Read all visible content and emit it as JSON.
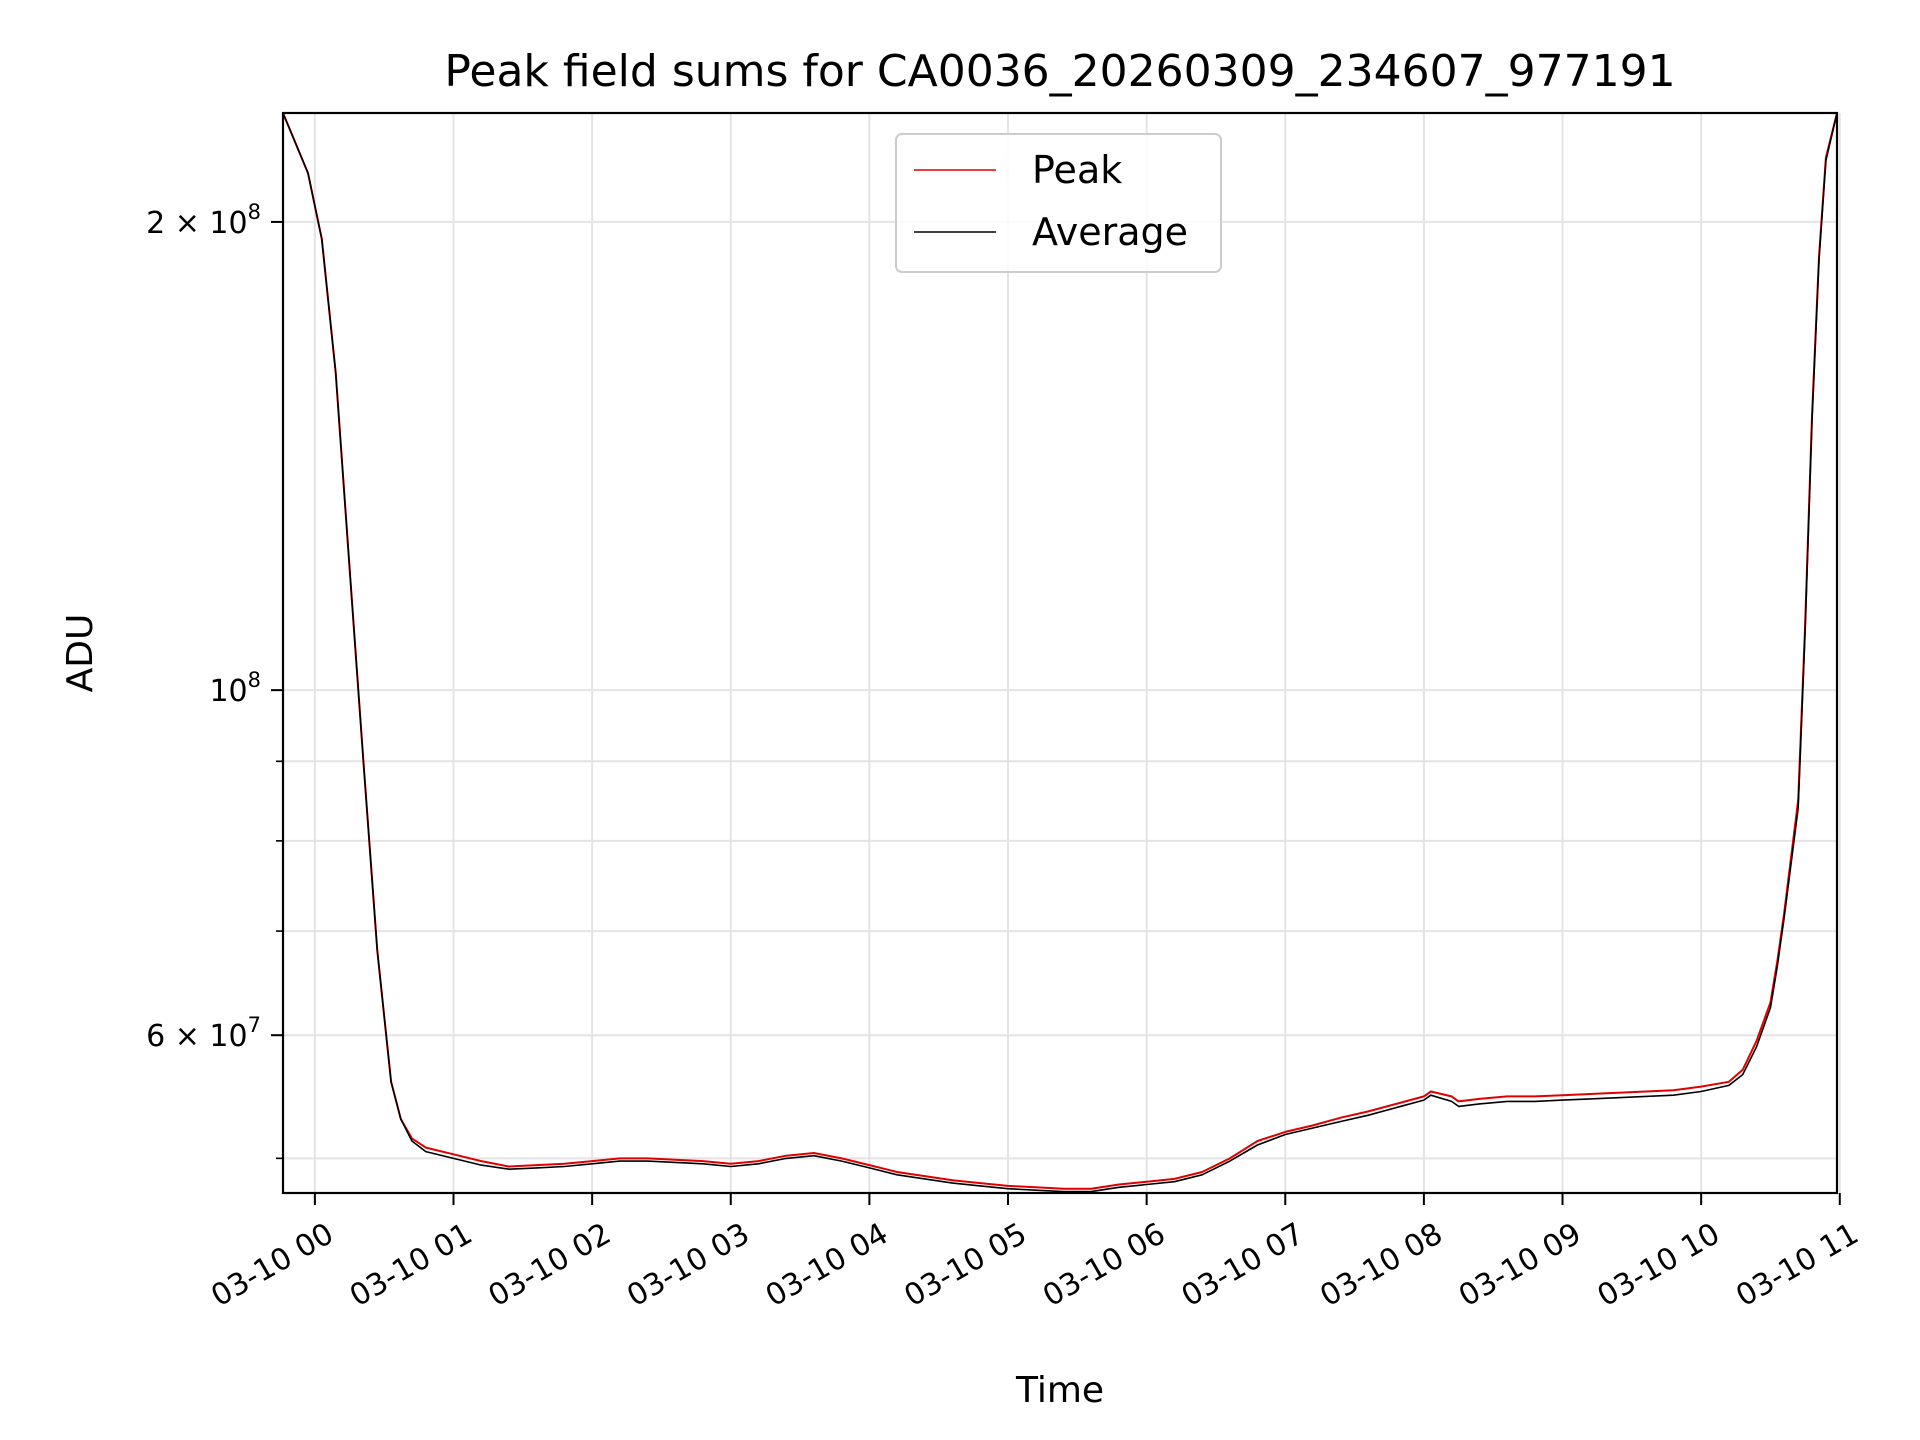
{
  "chart_data": {
    "type": "line",
    "title": "Peak field sums for CA0036_20260309_234607_977191",
    "xlabel": "Time",
    "ylabel": "ADU",
    "yscale": "log",
    "xlim_hours": [
      -0.23,
      10.98
    ],
    "ylim": [
      47500000,
      235000000
    ],
    "grid": true,
    "legend_placement": "upper center",
    "x_ticks": [
      "03-10 00",
      "03-10 01",
      "03-10 02",
      "03-10 03",
      "03-10 04",
      "03-10 05",
      "03-10 06",
      "03-10 07",
      "03-10 08",
      "03-10 09",
      "03-10 10",
      "03-10 11"
    ],
    "y_major_ticks": [
      {
        "value": 200000000,
        "base": "2 × 10",
        "exp": "8"
      },
      {
        "value": 100000000,
        "base": "10",
        "exp": "8"
      },
      {
        "value": 60000000,
        "base": "6 × 10",
        "exp": "7"
      }
    ],
    "y_minor_ticks": [
      50000000,
      70000000,
      80000000,
      90000000
    ],
    "series": [
      {
        "name": "Peak",
        "color": "#e00000",
        "x_hours": [
          -0.23,
          -0.05,
          0.05,
          0.15,
          0.25,
          0.35,
          0.45,
          0.55,
          0.62,
          0.7,
          0.8,
          1.0,
          1.2,
          1.4,
          1.6,
          1.8,
          2.0,
          2.2,
          2.4,
          2.6,
          2.8,
          3.0,
          3.2,
          3.4,
          3.6,
          3.8,
          4.0,
          4.2,
          4.4,
          4.6,
          4.8,
          5.0,
          5.2,
          5.4,
          5.6,
          5.8,
          6.0,
          6.2,
          6.4,
          6.6,
          6.8,
          7.0,
          7.2,
          7.4,
          7.6,
          7.8,
          8.0,
          8.05,
          8.2,
          8.25,
          8.4,
          8.6,
          8.8,
          9.0,
          9.2,
          9.4,
          9.6,
          9.8,
          10.0,
          10.2,
          10.3,
          10.4,
          10.5,
          10.55,
          10.6,
          10.7,
          10.75,
          10.8,
          10.85,
          10.9,
          10.98
        ],
        "y": [
          235000000,
          215000000,
          195000000,
          160000000,
          120000000,
          90000000,
          68000000,
          56000000,
          53000000,
          51500000,
          50800000,
          50300000,
          49800000,
          49400000,
          49500000,
          49600000,
          49800000,
          50000000,
          50000000,
          49900000,
          49800000,
          49600000,
          49800000,
          50200000,
          50400000,
          50000000,
          49500000,
          49000000,
          48700000,
          48400000,
          48200000,
          48000000,
          47900000,
          47800000,
          47800000,
          48100000,
          48300000,
          48500000,
          49000000,
          50000000,
          51300000,
          52000000,
          52500000,
          53100000,
          53600000,
          54200000,
          54800000,
          55200000,
          54800000,
          54400000,
          54600000,
          54800000,
          54800000,
          54900000,
          55000000,
          55100000,
          55200000,
          55300000,
          55600000,
          56000000,
          57000000,
          59500000,
          63000000,
          67000000,
          72000000,
          85000000,
          110000000,
          150000000,
          190000000,
          220000000,
          235000000
        ]
      },
      {
        "name": "Average",
        "color": "#000000",
        "x_hours": [
          -0.23,
          -0.05,
          0.05,
          0.15,
          0.25,
          0.35,
          0.45,
          0.55,
          0.62,
          0.7,
          0.8,
          1.0,
          1.2,
          1.4,
          1.6,
          1.8,
          2.0,
          2.2,
          2.4,
          2.6,
          2.8,
          3.0,
          3.2,
          3.4,
          3.6,
          3.8,
          4.0,
          4.2,
          4.4,
          4.6,
          4.8,
          5.0,
          5.2,
          5.4,
          5.6,
          5.8,
          6.0,
          6.2,
          6.4,
          6.6,
          6.8,
          7.0,
          7.2,
          7.4,
          7.6,
          7.8,
          8.0,
          8.05,
          8.2,
          8.25,
          8.4,
          8.6,
          8.8,
          9.0,
          9.2,
          9.4,
          9.6,
          9.8,
          10.0,
          10.2,
          10.3,
          10.4,
          10.5,
          10.55,
          10.6,
          10.7,
          10.75,
          10.8,
          10.85,
          10.9,
          10.98
        ],
        "y": [
          235000000,
          215000000,
          195000000,
          160000000,
          120000000,
          90000000,
          68000000,
          56000000,
          53000000,
          51300000,
          50500000,
          50000000,
          49500000,
          49200000,
          49300000,
          49400000,
          49600000,
          49800000,
          49800000,
          49700000,
          49600000,
          49400000,
          49600000,
          50000000,
          50200000,
          49800000,
          49300000,
          48800000,
          48500000,
          48200000,
          48000000,
          47800000,
          47700000,
          47600000,
          47600000,
          47900000,
          48100000,
          48300000,
          48800000,
          49800000,
          51000000,
          51800000,
          52300000,
          52800000,
          53300000,
          53900000,
          54500000,
          54900000,
          54400000,
          54000000,
          54200000,
          54400000,
          54400000,
          54500000,
          54600000,
          54700000,
          54800000,
          54900000,
          55200000,
          55700000,
          56600000,
          59000000,
          62500000,
          66500000,
          71500000,
          84000000,
          109000000,
          149000000,
          189000000,
          219000000,
          235000000
        ]
      }
    ]
  }
}
